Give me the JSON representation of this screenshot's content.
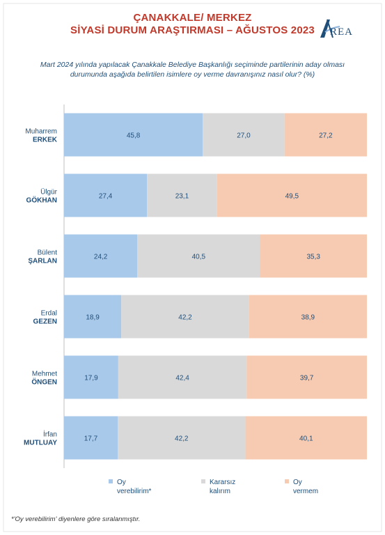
{
  "header": {
    "title_line1": "ÇANAKKALE/ MERKEZ",
    "title_line2": "SİYASİ DURUM ARAŞTIRMASI – AĞUSTOS 2023",
    "logo_text": "REA",
    "subtitle": "Mart 2024 yılında yapılacak Çanakkale Belediye Başkanlığı seçiminde partilerinin aday olması durumunda aşağıda belirtilen isimlere oy verme davranışınız nasıl olur? (%)"
  },
  "colors": {
    "title": "#c0392b",
    "text": "#1f4e79",
    "oy_verebilirim": "#a9c9ea",
    "kararsiz": "#d9d9d9",
    "oy_vermem": "#f7cbb2"
  },
  "chart_data": {
    "type": "bar",
    "orientation": "horizontal",
    "stacked": true,
    "categories": [
      {
        "line1": "Muharrem",
        "line2": "ERKEK"
      },
      {
        "line1": "Ülgür",
        "line2": "GÖKHAN"
      },
      {
        "line1": "Bülent",
        "line2": "ŞARLAN"
      },
      {
        "line1": "Erdal",
        "line2": "GEZEN"
      },
      {
        "line1": "Mehmet",
        "line2": "ÖNGEN"
      },
      {
        "line1": "İrfan",
        "line2": "MUTLUAY"
      }
    ],
    "series": [
      {
        "name_line1": "Oy",
        "name_line2": "verebilirim*",
        "color": "#a9c9ea",
        "values": [
          45.8,
          27.4,
          24.2,
          18.9,
          17.9,
          17.7
        ],
        "labels": [
          "45,8",
          "27,4",
          "24,2",
          "18,9",
          "17,9",
          "17,7"
        ]
      },
      {
        "name_line1": "Kararsız",
        "name_line2": "kalırım",
        "color": "#d9d9d9",
        "values": [
          27.0,
          23.1,
          40.5,
          42.2,
          42.4,
          42.2
        ],
        "labels": [
          "27,0",
          "23,1",
          "40,5",
          "42,2",
          "42,4",
          "42,2"
        ]
      },
      {
        "name_line1": "Oy",
        "name_line2": "vermem",
        "color": "#f7cbb2",
        "values": [
          27.2,
          49.5,
          35.3,
          38.9,
          39.7,
          40.1
        ],
        "labels": [
          "27,2",
          "49,5",
          "35,3",
          "38,9",
          "39,7",
          "40,1"
        ]
      }
    ],
    "xlim": [
      0,
      100
    ],
    "legend_position": "bottom"
  },
  "footnote": "*'Oy verebilirim' diyenlere göre sıralanmıştır."
}
